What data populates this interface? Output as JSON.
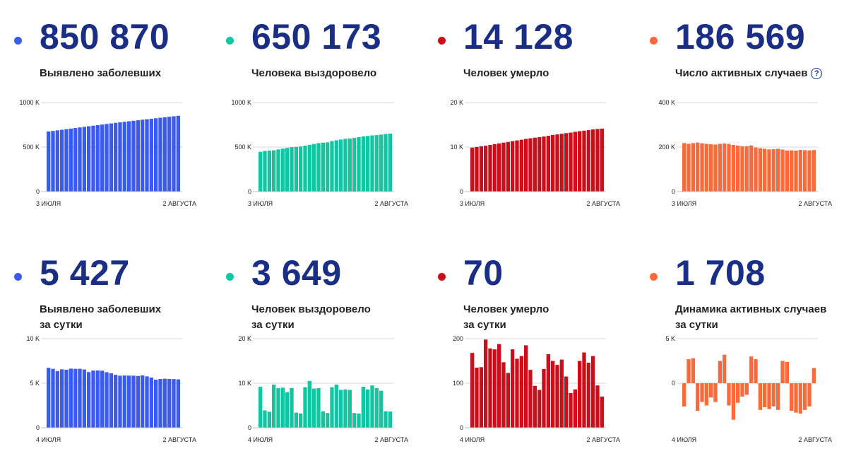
{
  "colors": {
    "blue": "#3b5bf0",
    "green": "#11c6a0",
    "red": "#cc0e1b",
    "orange": "#fa6a3a"
  },
  "cards": [
    {
      "value": "850 870",
      "label_lines": [
        "Выявлено заболевших"
      ],
      "color": "#3b5bf0",
      "chart_data": {
        "type": "bar",
        "x_start_label": "3 ИЮЛЯ",
        "x_end_label": "2 АВГУСТА",
        "y_ticks": [
          "0",
          "500 K",
          "1000 K"
        ],
        "ylim": [
          0,
          1000000
        ],
        "values": [
          674515,
          681251,
          687862,
          694230,
          700792,
          707301,
          713936,
          720547,
          727162,
          733699,
          739947,
          746369,
          752797,
          759203,
          765437,
          771546,
          777486,
          783328,
          789190,
          795038,
          800849,
          806720,
          812485,
          818120,
          823515,
          828990,
          834499,
          839981,
          845443,
          850870
        ]
      }
    },
    {
      "value": "650 173",
      "label_lines": [
        "Человека выздоровело"
      ],
      "color": "#11c6a0",
      "chart_data": {
        "type": "bar",
        "x_start_label": "3 ИЮЛЯ",
        "x_end_label": "2 АВГУСТА",
        "y_ticks": [
          "0",
          "500 K",
          "1000 K"
        ],
        "ylim": [
          0,
          1000000
        ],
        "values": [
          446879,
          456588,
          459761,
          463888,
          473408,
          482275,
          490491,
          498403,
          501612,
          506411,
          515209,
          525349,
          534709,
          543763,
          549582,
          552710,
          567010,
          576262,
          584680,
          592917,
          596198,
          602276,
          611000,
          620000,
          625000,
          631000,
          634000,
          640000,
          646524,
          650173
        ]
      }
    },
    {
      "value": "14 128",
      "label_lines": [
        "Человек умерло"
      ],
      "color": "#cc0e1b",
      "chart_data": {
        "type": "bar",
        "x_start_label": "3 ИЮЛЯ",
        "x_end_label": "2 АВГУСТА",
        "y_ticks": [
          "0",
          "10 K",
          "20 K"
        ],
        "ylim": [
          0,
          20000
        ],
        "values": [
          9880,
          10027,
          10160,
          10296,
          10478,
          10663,
          10823,
          10985,
          11145,
          11326,
          11496,
          11644,
          11829,
          11971,
          12101,
          12227,
          12359,
          12541,
          12710,
          12843,
          12984,
          13125,
          13245,
          13419,
          13572,
          13673,
          13797,
          13954,
          14058,
          14128
        ]
      }
    },
    {
      "value": "186 569",
      "label_lines": [
        "Число активных случаев"
      ],
      "has_help_icon": true,
      "color": "#fa6a3a",
      "chart_data": {
        "type": "bar",
        "x_start_label": "3 ИЮЛЯ",
        "x_end_label": "2 АВГУСТА",
        "y_ticks": [
          "0",
          "200 K",
          "400 K"
        ],
        "ylim": [
          0,
          400000
        ],
        "values": [
          217700,
          214600,
          217900,
          219900,
          216900,
          214400,
          212600,
          211200,
          214400,
          215900,
          214000,
          209400,
          206300,
          203400,
          203700,
          207200,
          197800,
          194800,
          192100,
          189300,
          190500,
          192400,
          188600,
          184000,
          185000,
          184000,
          187000,
          186000,
          185000,
          186569
        ]
      }
    },
    {
      "value": "5 427",
      "label_lines": [
        "Выявлено заболевших",
        "за сутки"
      ],
      "color": "#3b5bf0",
      "chart_data": {
        "type": "bar",
        "x_start_label": "4 ИЮЛЯ",
        "x_end_label": "2 АВГУСТА",
        "y_ticks": [
          "0",
          "5 K",
          "10 K"
        ],
        "ylim": [
          0,
          10000
        ],
        "values": [
          6736,
          6611,
          6368,
          6562,
          6509,
          6635,
          6611,
          6615,
          6537,
          6248,
          6422,
          6428,
          6406,
          6234,
          6109,
          5940,
          5842,
          5862,
          5852,
          5848,
          5811,
          5871,
          5765,
          5635,
          5395,
          5475,
          5509,
          5482,
          5462,
          5427
        ]
      }
    },
    {
      "value": "3 649",
      "label_lines": [
        "Человек выздоровело",
        "за сутки"
      ],
      "color": "#11c6a0",
      "chart_data": {
        "type": "bar",
        "x_start_label": "4 ИЮЛЯ",
        "x_end_label": "2 АВГУСТА",
        "y_ticks": [
          "0",
          "10 K",
          "20 K"
        ],
        "ylim": [
          0,
          20000
        ],
        "values": [
          9200,
          3900,
          3600,
          9700,
          8900,
          9000,
          8000,
          8900,
          3400,
          3200,
          9100,
          10500,
          8800,
          8900,
          3700,
          3300,
          9100,
          9700,
          8500,
          8600,
          8500,
          3300,
          3200,
          9200,
          8600,
          9500,
          8900,
          8300,
          3700,
          3649
        ]
      }
    },
    {
      "value": "70",
      "label_lines": [
        "Человек умерло",
        "за сутки"
      ],
      "color": "#cc0e1b",
      "chart_data": {
        "type": "bar",
        "x_start_label": "4 ИЮЛЯ",
        "x_end_label": "2 АВГУСТА",
        "y_ticks": [
          "0",
          "100",
          "200"
        ],
        "ylim": [
          0,
          200
        ],
        "values": [
          168,
          135,
          136,
          198,
          178,
          176,
          188,
          147,
          123,
          176,
          155,
          161,
          185,
          130,
          94,
          85,
          132,
          165,
          150,
          141,
          153,
          115,
          78,
          86,
          150,
          169,
          146,
          161,
          95,
          70
        ]
      }
    },
    {
      "value": "1 708",
      "label_lines": [
        "Динамика активных случаев",
        "за сутки"
      ],
      "color": "#fa6a3a",
      "chart_data": {
        "type": "bar",
        "x_start_label": "4 ИЮЛЯ",
        "x_end_label": "2 АВГУСТА",
        "y_ticks": [
          "0",
          "5 K"
        ],
        "ylim": [
          -5000,
          5000
        ],
        "values": [
          -2600,
          2700,
          2800,
          -3100,
          -2100,
          -2500,
          -1600,
          -2100,
          2500,
          3200,
          -2500,
          -4100,
          -2200,
          -1500,
          -1300,
          3000,
          2700,
          -3000,
          -2700,
          -2900,
          -2600,
          -3000,
          2500,
          2400,
          -3100,
          -3300,
          -3400,
          -3000,
          -2600,
          1708
        ]
      }
    }
  ]
}
